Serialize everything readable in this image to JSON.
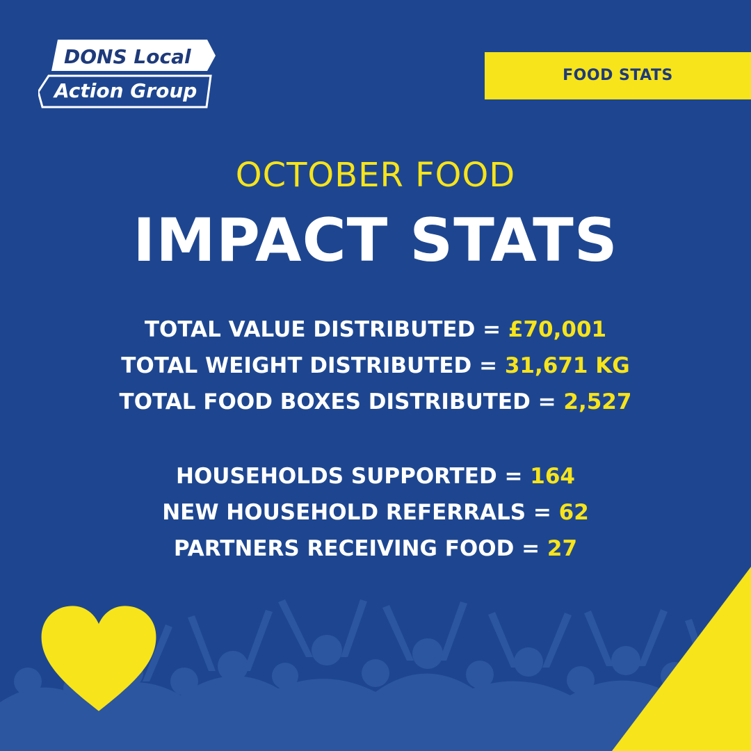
{
  "brand": {
    "line1": "DONS Local",
    "line2": "Action Group"
  },
  "tag": "FOOD STATS",
  "subtitle": "OCTOBER FOOD",
  "title": "IMPACT STATS",
  "stats_group_1": [
    {
      "label": "TOTAL VALUE DISTRIBUTED",
      "separator": " = ",
      "value": "£70,001"
    },
    {
      "label": "TOTAL WEIGHT DISTRIBUTED",
      "separator": " = ",
      "value": "31,671 KG"
    },
    {
      "label": "TOTAL FOOD BOXES DISTRIBUTED",
      "separator": " = ",
      "value": "2,527"
    }
  ],
  "stats_group_2": [
    {
      "label": "HOUSEHOLDS SUPPORTED",
      "separator": " = ",
      "value": "164"
    },
    {
      "label": "NEW HOUSEHOLD REFERRALS",
      "separator": " = ",
      "value": "62"
    },
    {
      "label": "PARTNERS RECEIVING FOOD",
      "separator": " = ",
      "value": "27"
    }
  ],
  "colors": {
    "background": "#1e4690",
    "accent_yellow": "#f7e41a",
    "text_white": "#ffffff",
    "crowd_silhouette": "#2c56a0"
  },
  "icons": {
    "heart": "heart-icon",
    "crowd": "crowd-silhouette"
  }
}
